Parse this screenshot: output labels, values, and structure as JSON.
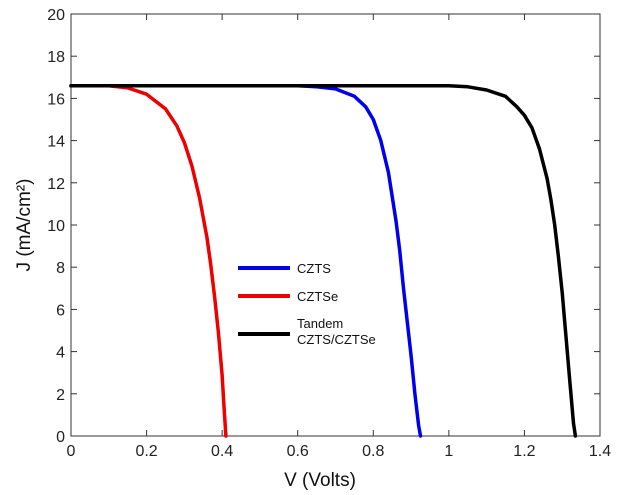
{
  "chart_data": {
    "type": "line",
    "title": "",
    "xlabel": "V (Volts)",
    "ylabel": "J (mA/cm²)",
    "xlim": [
      0,
      1.4
    ],
    "ylim": [
      0,
      20
    ],
    "xticks": [
      0,
      0.2,
      0.4,
      0.6,
      0.8,
      1,
      1.2,
      1.4
    ],
    "yticks": [
      0,
      2,
      4,
      6,
      8,
      10,
      12,
      14,
      16,
      18,
      20
    ],
    "xtick_labels": [
      "0",
      "0.2",
      "0.4",
      "0.6",
      "0.8",
      "1",
      "1.2",
      "1.4"
    ],
    "ytick_labels": [
      "0",
      "2",
      "4",
      "6",
      "8",
      "10",
      "12",
      "14",
      "16",
      "18",
      "20"
    ],
    "grid": false,
    "legend_position": "center",
    "series": [
      {
        "name": "CZTS",
        "color": "#0000ee",
        "x": [
          0,
          0.6,
          0.65,
          0.7,
          0.75,
          0.78,
          0.8,
          0.82,
          0.84,
          0.86,
          0.87,
          0.88,
          0.89,
          0.9,
          0.91,
          0.92,
          0.925
        ],
        "y": [
          16.6,
          16.6,
          16.55,
          16.45,
          16.1,
          15.6,
          15.0,
          14.0,
          12.5,
          10.2,
          8.8,
          7.0,
          5.4,
          3.8,
          2.0,
          0.5,
          0
        ]
      },
      {
        "name": "CZTSe",
        "color": "#ee0000",
        "x": [
          0,
          0.1,
          0.15,
          0.2,
          0.25,
          0.28,
          0.3,
          0.32,
          0.34,
          0.36,
          0.37,
          0.38,
          0.39,
          0.4,
          0.405,
          0.41
        ],
        "y": [
          16.6,
          16.6,
          16.5,
          16.2,
          15.5,
          14.7,
          13.9,
          12.8,
          11.3,
          9.4,
          8.1,
          6.6,
          4.9,
          2.9,
          1.4,
          0
        ]
      },
      {
        "name": "Tandem CZTS/CZTSe",
        "name_lines": [
          "Tandem",
          "CZTS/CZTSe"
        ],
        "color": "#000000",
        "x": [
          0,
          1.0,
          1.05,
          1.1,
          1.15,
          1.18,
          1.2,
          1.22,
          1.24,
          1.26,
          1.27,
          1.28,
          1.29,
          1.3,
          1.31,
          1.32,
          1.33,
          1.335
        ],
        "y": [
          16.6,
          16.6,
          16.55,
          16.4,
          16.1,
          15.6,
          15.2,
          14.6,
          13.6,
          12.2,
          11.2,
          10.0,
          8.5,
          6.8,
          4.7,
          2.6,
          0.6,
          0
        ]
      }
    ]
  }
}
